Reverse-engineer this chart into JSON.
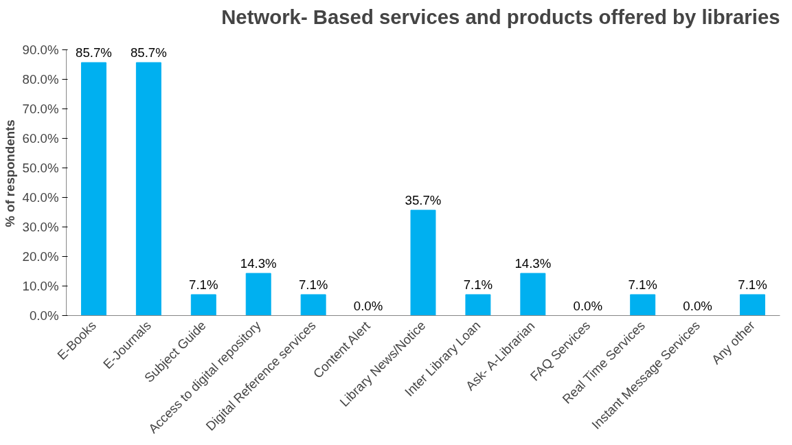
{
  "chart_data": {
    "type": "bar",
    "title": "Network- Based services and products offered by libraries",
    "ylabel": "% of respondents",
    "categories": [
      "E-Books",
      "E-Journals",
      "Subject Guide",
      "Access to digital repository",
      "Digital Reference services",
      "Content Alert",
      "Library News/Notice",
      "Inter Library Loan",
      "Ask- A-Librarian",
      "FAQ Services",
      "Real Time Services",
      "Instant Message Services",
      "Any other"
    ],
    "values": [
      85.7,
      85.7,
      7.1,
      14.3,
      7.1,
      0.0,
      35.7,
      7.1,
      14.3,
      0.0,
      7.1,
      0.0,
      7.1
    ],
    "value_labels": [
      "85.7%",
      "85.7%",
      "7.1%",
      "14.3%",
      "7.1%",
      "0.0%",
      "35.7%",
      "7.1%",
      "14.3%",
      "0.0%",
      "7.1%",
      "0.0%",
      "7.1%"
    ],
    "color": "#00b0f0",
    "ylim": [
      0,
      90
    ],
    "yticks": [
      {
        "value": 0,
        "label": "0.0%"
      },
      {
        "value": 10,
        "label": "10.0%"
      },
      {
        "value": 20,
        "label": "20.0%"
      },
      {
        "value": 30,
        "label": "30.0%"
      },
      {
        "value": 40,
        "label": "40.0%"
      },
      {
        "value": 50,
        "label": "50.0%"
      },
      {
        "value": 60,
        "label": "60.0%"
      },
      {
        "value": 70,
        "label": "70.0%"
      },
      {
        "value": 80,
        "label": "80.0%"
      },
      {
        "value": 90,
        "label": "90.0%"
      }
    ],
    "grid": false
  }
}
